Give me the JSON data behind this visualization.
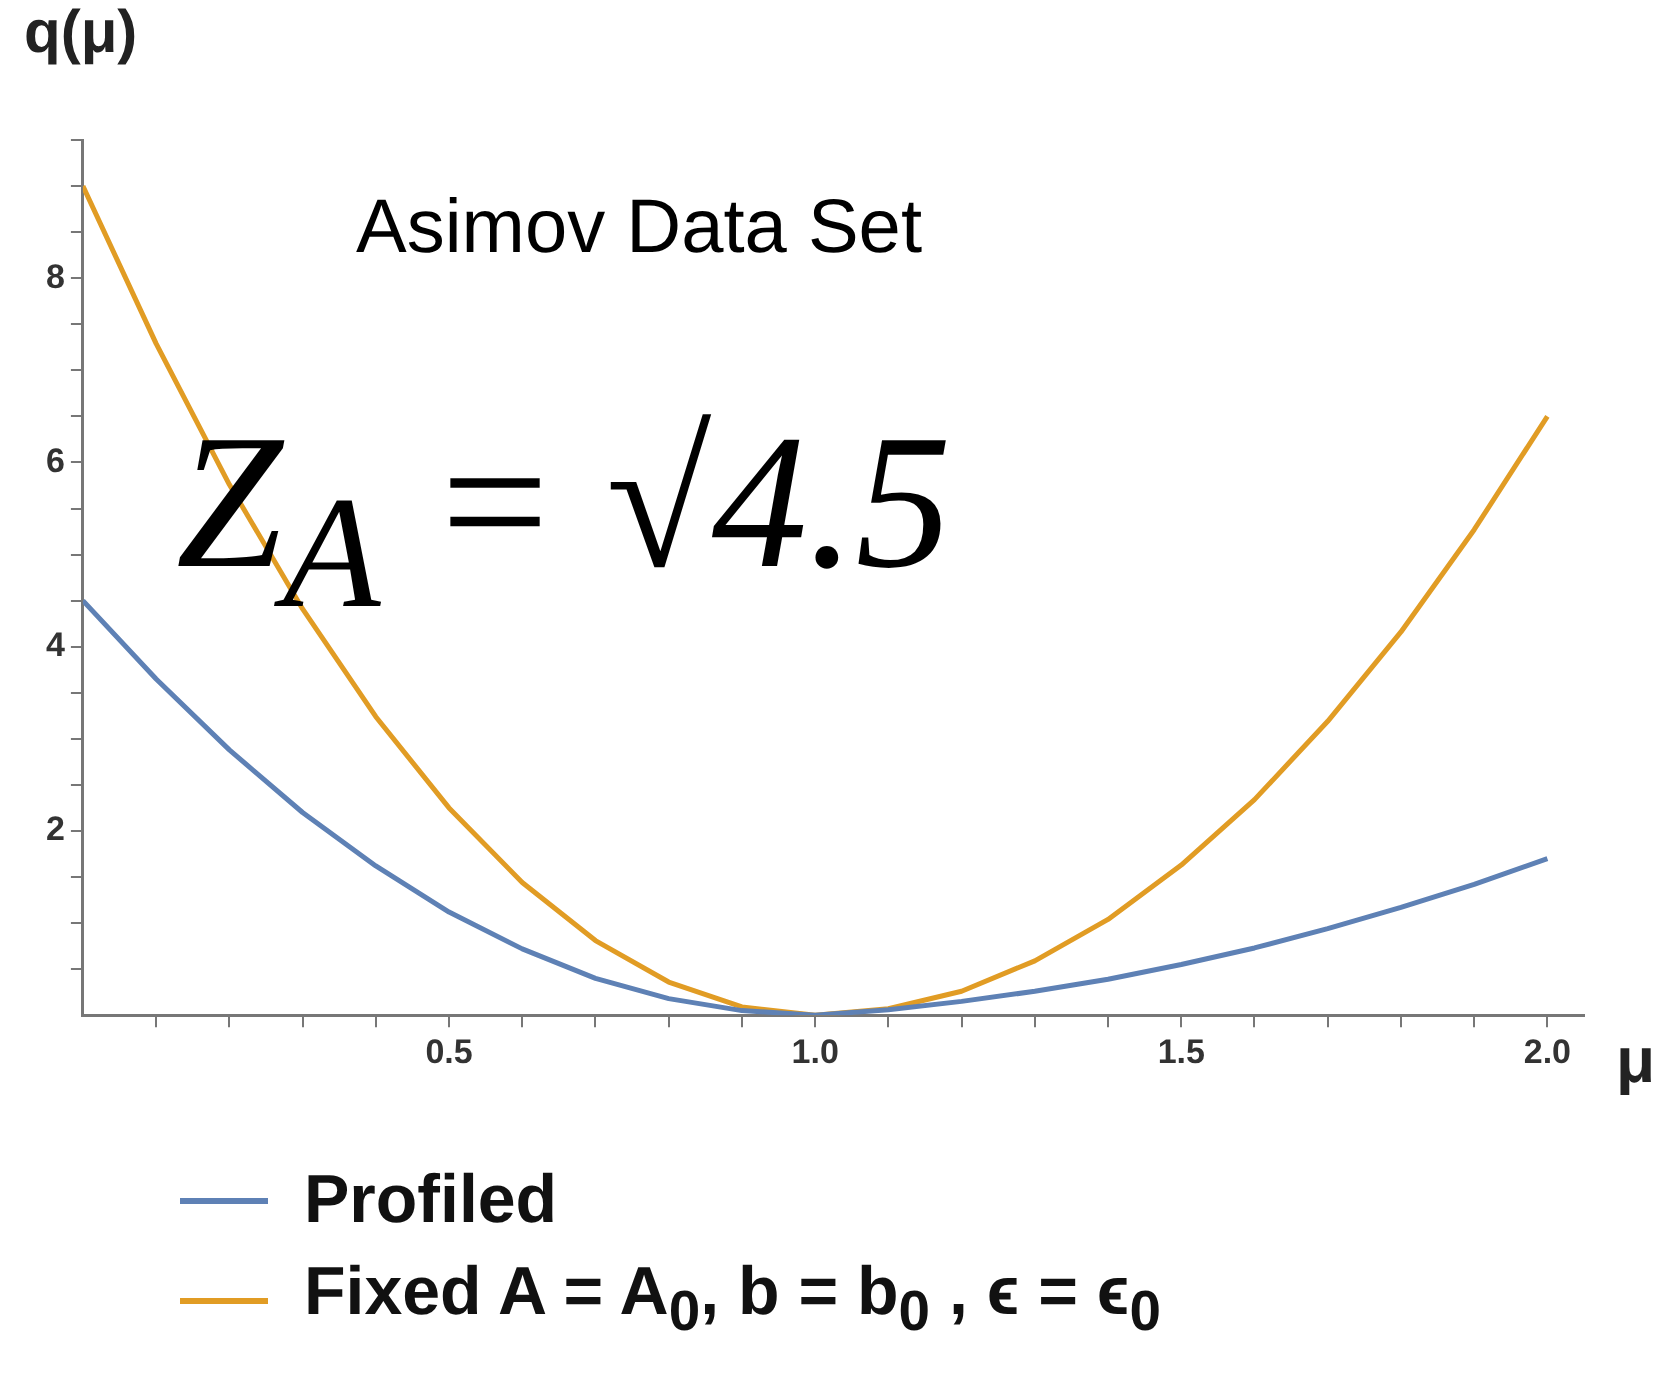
{
  "chart_data": {
    "type": "line",
    "ylabel": "q(μ)",
    "xlabel": "μ",
    "annotations": [
      "Asimov Data Set",
      "Z$_{A}$ = √4.5"
    ],
    "x": [
      0,
      0.1,
      0.2,
      0.3,
      0.4,
      0.5,
      0.6,
      0.7,
      0.8,
      0.9,
      1.0,
      1.1,
      1.2,
      1.3,
      1.4,
      1.5,
      1.6,
      1.7,
      1.8,
      1.9,
      2.0
    ],
    "series": [
      {
        "name": "Profiled",
        "color": "#5e81b5",
        "values": [
          4.5,
          3.65,
          2.88,
          2.2,
          1.62,
          1.12,
          0.72,
          0.4,
          0.18,
          0.05,
          0,
          0.06,
          0.15,
          0.26,
          0.39,
          0.55,
          0.73,
          0.94,
          1.17,
          1.42,
          1.7
        ]
      },
      {
        "name": "Fixed A = A$_{0}$, b = b$_{0}$ , ϵ = ϵ$_{0}$",
        "color": "#e19c24",
        "values": [
          9,
          7.29,
          5.76,
          4.41,
          3.24,
          2.25,
          1.44,
          0.81,
          0.36,
          0.09,
          0,
          0.07,
          0.26,
          0.59,
          1.04,
          1.63,
          2.34,
          3.19,
          4.16,
          5.27,
          6.5
        ]
      }
    ],
    "xlim": [
      0,
      2.05
    ],
    "ylim": [
      0,
      9.5
    ],
    "xticks": [
      {
        "value": 0.1,
        "label": null
      },
      {
        "value": 0.2,
        "label": null
      },
      {
        "value": 0.3,
        "label": null
      },
      {
        "value": 0.4,
        "label": null
      },
      0.5,
      {
        "value": 0.6,
        "label": null
      },
      {
        "value": 0.7,
        "label": null
      },
      {
        "value": 0.8,
        "label": null
      },
      {
        "value": 0.9,
        "label": null
      },
      {
        "value": 1.0,
        "label": "1.0"
      },
      {
        "value": 1.1,
        "label": null
      },
      {
        "value": 1.2,
        "label": null
      },
      {
        "value": 1.3,
        "label": null
      },
      {
        "value": 1.4,
        "label": null
      },
      1.5,
      {
        "value": 1.6,
        "label": null
      },
      {
        "value": 1.7,
        "label": null
      },
      {
        "value": 1.8,
        "label": null
      },
      {
        "value": 1.9,
        "label": null
      },
      {
        "value": 2.0,
        "label": "2.0"
      }
    ],
    "yticks": [
      {
        "value": 0.5,
        "label": null
      },
      {
        "value": 1,
        "label": null
      },
      {
        "value": 1.5,
        "label": null
      },
      2,
      {
        "value": 2.5,
        "label": null
      },
      {
        "value": 3,
        "label": null
      },
      {
        "value": 3.5,
        "label": null
      },
      4,
      {
        "value": 4.5,
        "label": null
      },
      {
        "value": 5,
        "label": null
      },
      {
        "value": 5.5,
        "label": null
      },
      6,
      {
        "value": 6.5,
        "label": null
      },
      {
        "value": 7,
        "label": null
      },
      {
        "value": 7.5,
        "label": null
      },
      8,
      {
        "value": 8.5,
        "label": null
      },
      {
        "value": 9,
        "label": null
      },
      {
        "value": 9.5,
        "label": null
      }
    ],
    "grid": false,
    "legend": "bottom",
    "marker": "none",
    "line_style": "solid"
  }
}
